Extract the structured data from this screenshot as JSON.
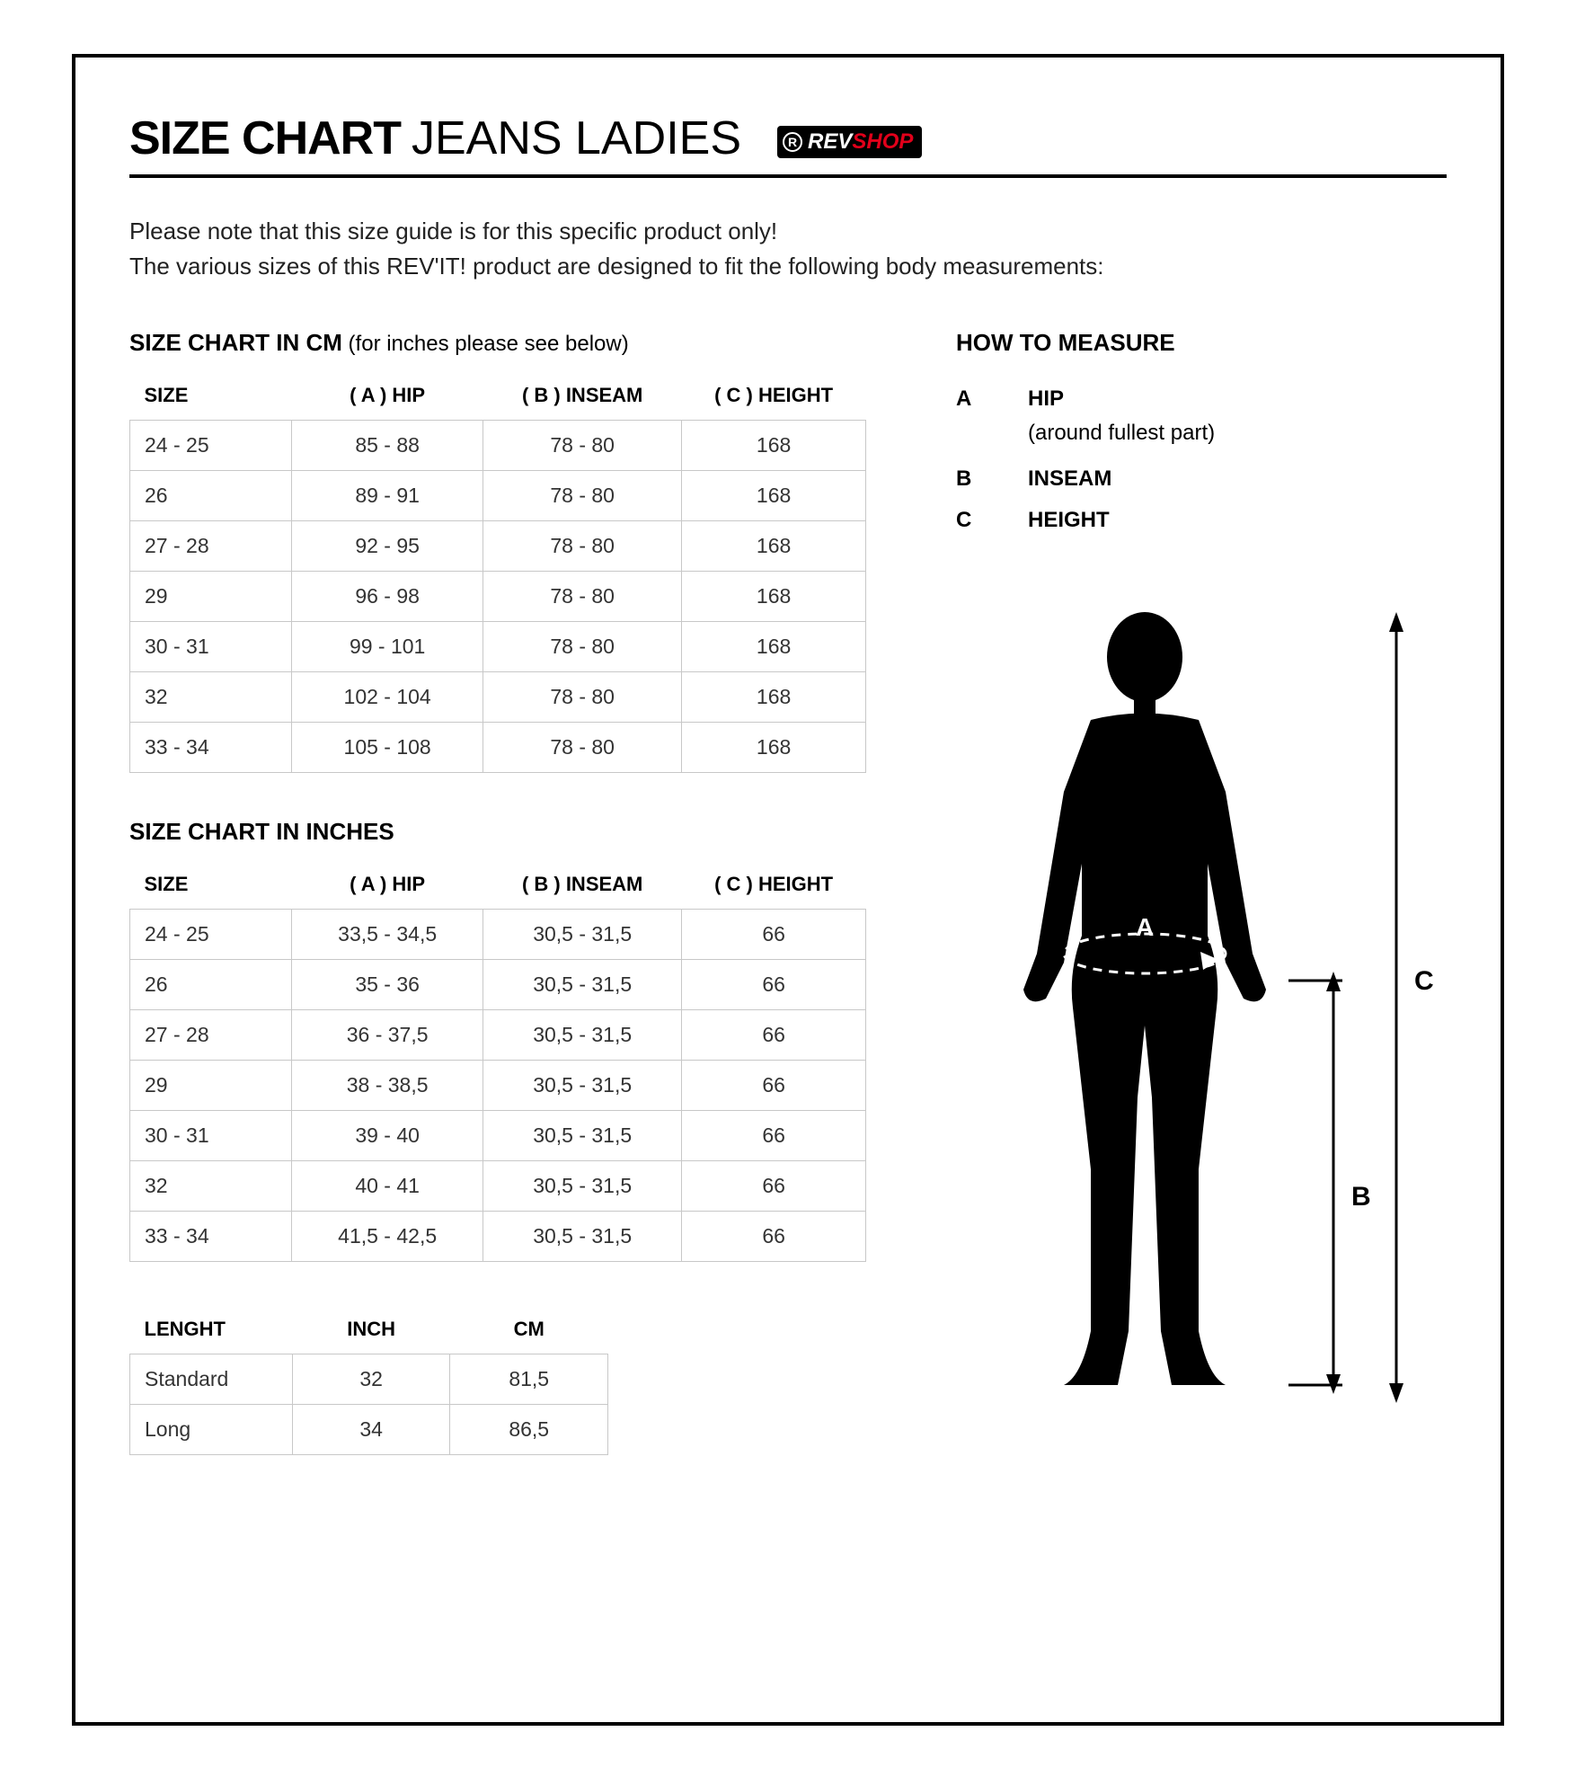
{
  "header": {
    "title_bold": "SIZE CHART",
    "title_light": " JEANS LADIES",
    "logo_rev": "REV",
    "logo_shop": "SHOP"
  },
  "intro": {
    "line1": "Please note that this size guide is for this specific product only!",
    "line2": "The various sizes of this REV'IT! product are designed to fit the following body measurements:"
  },
  "cm_table": {
    "title": "SIZE CHART IN CM",
    "note": " (for inches please see below)",
    "columns": [
      "SIZE",
      "( A ) HIP",
      "( B ) INSEAM",
      "( C ) HEIGHT"
    ],
    "rows": [
      [
        "24 - 25",
        "85 - 88",
        "78 - 80",
        "168"
      ],
      [
        "26",
        "89 - 91",
        "78 - 80",
        "168"
      ],
      [
        "27 - 28",
        "92 - 95",
        "78 - 80",
        "168"
      ],
      [
        "29",
        "96 - 98",
        "78 - 80",
        "168"
      ],
      [
        "30 - 31",
        "99 - 101",
        "78 - 80",
        "168"
      ],
      [
        "32",
        "102 - 104",
        "78 - 80",
        "168"
      ],
      [
        "33 - 34",
        "105 - 108",
        "78 - 80",
        "168"
      ]
    ]
  },
  "in_table": {
    "title": "SIZE CHART IN INCHES",
    "columns": [
      "SIZE",
      "( A ) HIP",
      "( B ) INSEAM",
      "( C ) HEIGHT"
    ],
    "rows": [
      [
        "24 - 25",
        "33,5 - 34,5",
        "30,5 - 31,5",
        "66"
      ],
      [
        "26",
        "35 - 36",
        "30,5 - 31,5",
        "66"
      ],
      [
        "27 - 28",
        "36 - 37,5",
        "30,5 - 31,5",
        "66"
      ],
      [
        "29",
        "38 - 38,5",
        "30,5 - 31,5",
        "66"
      ],
      [
        "30 - 31",
        "39 - 40",
        "30,5 - 31,5",
        "66"
      ],
      [
        "32",
        "40 - 41",
        "30,5 - 31,5",
        "66"
      ],
      [
        "33 - 34",
        "41,5 - 42,5",
        "30,5 - 31,5",
        "66"
      ]
    ]
  },
  "length_table": {
    "columns": [
      "LENGHT",
      "INCH",
      "CM"
    ],
    "rows": [
      [
        "Standard",
        "32",
        "81,5"
      ],
      [
        "Long",
        "34",
        "86,5"
      ]
    ]
  },
  "measure": {
    "title": "HOW TO MEASURE",
    "items": [
      {
        "key": "A",
        "label": "HIP",
        "sub": "(around fullest part)"
      },
      {
        "key": "B",
        "label": "INSEAM",
        "sub": ""
      },
      {
        "key": "C",
        "label": "HEIGHT",
        "sub": ""
      }
    ]
  },
  "figure": {
    "label_a": "A",
    "label_b": "B",
    "label_c": "C",
    "silhouette_color": "#000000",
    "arrow_color": "#000000"
  },
  "styling": {
    "border_color": "#c8c8c8",
    "text_color": "#000000",
    "accent_red": "#e2001a",
    "body_fontsize": 23,
    "heading_fontsize": 52
  }
}
